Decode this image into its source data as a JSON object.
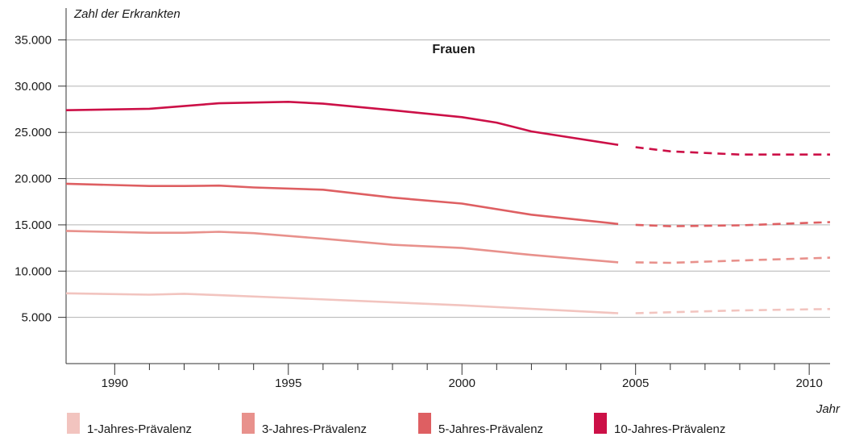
{
  "chart_data": {
    "type": "line",
    "title": "Frauen",
    "ylabel": "Zahl der Erkrankten",
    "xlabel": "Jahr",
    "xlim": [
      1988.6,
      2010.6
    ],
    "ylim": [
      0,
      36000
    ],
    "x_ticks_labeled": [
      1990,
      1995,
      2000,
      2005,
      2010
    ],
    "x_ticks_minor": [
      1991,
      1992,
      1993,
      1994,
      1996,
      1997,
      1998,
      1999,
      2001,
      2002,
      2003,
      2004,
      2006,
      2007,
      2008,
      2009
    ],
    "y_ticks": [
      {
        "value": 5000,
        "label": "5.000"
      },
      {
        "value": 10000,
        "label": "10.000"
      },
      {
        "value": 15000,
        "label": "15.000"
      },
      {
        "value": 20000,
        "label": "20.000"
      },
      {
        "value": 25000,
        "label": "25.000"
      },
      {
        "value": 30000,
        "label": "30.000"
      },
      {
        "value": 35000,
        "label": "35.000"
      }
    ],
    "grid": "horizontal",
    "legend_position": "bottom",
    "series": [
      {
        "name": "1-Jahres-Prävalenz",
        "color": "#f2c4bf",
        "solid": [
          [
            1988.6,
            7600
          ],
          [
            1991,
            7450
          ],
          [
            1992,
            7550
          ],
          [
            1993,
            7400
          ],
          [
            1995,
            7100
          ],
          [
            2000,
            6300
          ],
          [
            2004.5,
            5450
          ]
        ],
        "projected": [
          [
            2005,
            5450
          ],
          [
            2006,
            5550
          ],
          [
            2008,
            5750
          ],
          [
            2010.6,
            5900
          ]
        ]
      },
      {
        "name": "3-Jahres-Prävalenz",
        "color": "#e8918c",
        "solid": [
          [
            1988.6,
            14350
          ],
          [
            1991,
            14150
          ],
          [
            1992,
            14150
          ],
          [
            1993,
            14250
          ],
          [
            1994,
            14100
          ],
          [
            1996,
            13500
          ],
          [
            1998,
            12850
          ],
          [
            2000,
            12500
          ],
          [
            2002,
            11750
          ],
          [
            2004.5,
            10950
          ]
        ],
        "projected": [
          [
            2005,
            10950
          ],
          [
            2006,
            10900
          ],
          [
            2008,
            11150
          ],
          [
            2010.6,
            11450
          ]
        ]
      },
      {
        "name": "5-Jahres-Prävalenz",
        "color": "#de5f62",
        "solid": [
          [
            1988.6,
            19450
          ],
          [
            1991,
            19200
          ],
          [
            1992,
            19200
          ],
          [
            1993,
            19250
          ],
          [
            1994,
            19050
          ],
          [
            1996,
            18800
          ],
          [
            1998,
            17950
          ],
          [
            2000,
            17300
          ],
          [
            2002,
            16100
          ],
          [
            2004.5,
            15100
          ]
        ],
        "projected": [
          [
            2005,
            15000
          ],
          [
            2006,
            14850
          ],
          [
            2008,
            14950
          ],
          [
            2010.6,
            15300
          ]
        ]
      },
      {
        "name": "10-Jahres-Prävalenz",
        "color": "#cc1047",
        "solid": [
          [
            1988.6,
            27400
          ],
          [
            1991,
            27550
          ],
          [
            1993,
            28150
          ],
          [
            1995,
            28300
          ],
          [
            1996,
            28100
          ],
          [
            1998,
            27400
          ],
          [
            2000,
            26650
          ],
          [
            2001,
            26050
          ],
          [
            2002,
            25100
          ],
          [
            2004.5,
            23650
          ]
        ],
        "projected": [
          [
            2005,
            23400
          ],
          [
            2006,
            22950
          ],
          [
            2008,
            22600
          ],
          [
            2010.6,
            22600
          ]
        ]
      }
    ]
  }
}
